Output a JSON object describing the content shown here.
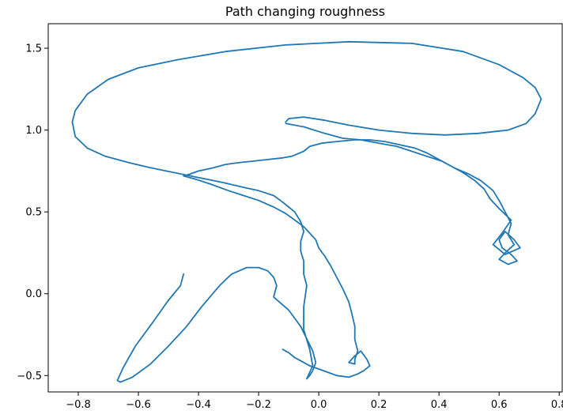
{
  "chart_data": {
    "type": "line",
    "title": "Path changing roughness",
    "xlabel": "",
    "ylabel": "",
    "xlim": [
      -0.9,
      0.81
    ],
    "ylim": [
      -0.6,
      1.65
    ],
    "xticks": [
      -0.8,
      -0.6,
      -0.4,
      -0.2,
      0.0,
      0.2,
      0.4,
      0.6,
      0.8
    ],
    "xtick_labels": [
      "−0.8",
      "−0.6",
      "−0.4",
      "−0.2",
      "0.0",
      "0.2",
      "0.4",
      "0.6",
      "0.8"
    ],
    "yticks": [
      -0.5,
      0.0,
      0.5,
      1.0,
      1.5
    ],
    "ytick_labels": [
      "−0.5",
      "0.0",
      "0.5",
      "1.0",
      "1.5"
    ],
    "grid": false,
    "line_color": "#1f77b4",
    "series": [
      {
        "x": [
          -0.45,
          -0.46,
          -0.5,
          -0.55,
          -0.61,
          -0.65,
          -0.67,
          -0.66,
          -0.62,
          -0.56,
          -0.5,
          -0.44,
          -0.39,
          -0.33,
          -0.29,
          -0.24,
          -0.2,
          -0.17,
          -0.15,
          -0.14,
          -0.15,
          -0.1,
          -0.06,
          -0.02,
          -0.01,
          -0.02,
          -0.03,
          -0.04,
          -0.03,
          -0.02,
          -0.03,
          -0.05,
          -0.05,
          -0.04,
          -0.05,
          -0.05,
          -0.06,
          -0.06,
          -0.05,
          -0.06,
          -0.07,
          -0.08,
          -0.1,
          -0.12,
          -0.15,
          -0.2,
          -0.25,
          -0.32,
          -0.4,
          -0.48,
          -0.56,
          -0.63,
          -0.71,
          -0.77,
          -0.81,
          -0.82,
          -0.81,
          -0.77,
          -0.7,
          -0.6,
          -0.47,
          -0.31,
          -0.11,
          0.1,
          0.31,
          0.48,
          0.6,
          0.68,
          0.72,
          0.74,
          0.72,
          0.69,
          0.63,
          0.53,
          0.42,
          0.31,
          0.2,
          0.1,
          0.02,
          -0.05,
          -0.1,
          -0.11
        ],
        "y": [
          0.12,
          0.05,
          -0.04,
          -0.17,
          -0.32,
          -0.45,
          -0.53,
          -0.54,
          -0.51,
          -0.43,
          -0.32,
          -0.2,
          -0.08,
          0.05,
          0.12,
          0.16,
          0.16,
          0.14,
          0.1,
          0.05,
          -0.02,
          -0.1,
          -0.2,
          -0.35,
          -0.42,
          -0.47,
          -0.5,
          -0.52,
          -0.48,
          -0.44,
          -0.34,
          -0.22,
          -0.08,
          0.05,
          0.12,
          0.2,
          0.26,
          0.32,
          0.38,
          0.44,
          0.47,
          0.5,
          0.53,
          0.56,
          0.6,
          0.63,
          0.65,
          0.68,
          0.71,
          0.74,
          0.77,
          0.8,
          0.84,
          0.89,
          0.96,
          1.05,
          1.12,
          1.22,
          1.31,
          1.38,
          1.43,
          1.48,
          1.52,
          1.54,
          1.53,
          1.48,
          1.4,
          1.32,
          1.26,
          1.19,
          1.1,
          1.04,
          1.0,
          0.98,
          0.97,
          0.98,
          1.0,
          1.03,
          1.06,
          1.08,
          1.07,
          1.05
        ]
      },
      {
        "x": [
          -0.11,
          -0.05,
          0.02,
          0.08,
          0.14,
          0.2,
          0.26,
          0.31,
          0.36,
          0.41,
          0.45,
          0.5,
          0.54,
          0.58,
          0.6,
          0.62,
          0.64,
          0.63,
          0.65,
          0.62,
          0.6,
          0.63,
          0.66,
          0.64,
          0.61,
          0.6,
          0.62,
          0.65,
          0.67,
          0.62,
          0.58,
          0.61,
          0.64,
          0.6,
          0.57,
          0.55,
          0.52,
          0.48,
          0.44,
          0.4,
          0.36,
          0.32,
          0.27,
          0.22,
          0.17,
          0.12,
          0.06,
          0.01,
          -0.03,
          -0.05,
          -0.09,
          -0.12,
          -0.17,
          -0.22,
          -0.27,
          -0.31,
          -0.35,
          -0.4,
          -0.43,
          -0.45,
          -0.41,
          -0.36,
          -0.3,
          -0.25,
          -0.2,
          -0.15,
          -0.11,
          -0.08,
          -0.05,
          -0.03,
          -0.01,
          0.0,
          0.02,
          0.04,
          0.06,
          0.08,
          0.1,
          0.11,
          0.12,
          0.12,
          0.13,
          0.12,
          0.12,
          0.1,
          0.12,
          0.14,
          0.16,
          0.17,
          0.15,
          0.13,
          0.1,
          0.06,
          0.03,
          0.0,
          -0.03,
          -0.05,
          -0.08,
          -0.1,
          -0.12
        ],
        "y": [
          1.04,
          1.02,
          0.98,
          0.95,
          0.94,
          0.92,
          0.9,
          0.87,
          0.84,
          0.81,
          0.77,
          0.73,
          0.69,
          0.63,
          0.57,
          0.5,
          0.43,
          0.36,
          0.3,
          0.25,
          0.21,
          0.18,
          0.2,
          0.24,
          0.28,
          0.33,
          0.38,
          0.33,
          0.28,
          0.24,
          0.3,
          0.37,
          0.45,
          0.52,
          0.58,
          0.64,
          0.69,
          0.74,
          0.78,
          0.82,
          0.86,
          0.89,
          0.91,
          0.93,
          0.94,
          0.94,
          0.93,
          0.92,
          0.9,
          0.87,
          0.84,
          0.83,
          0.82,
          0.81,
          0.8,
          0.79,
          0.77,
          0.75,
          0.73,
          0.72,
          0.7,
          0.67,
          0.63,
          0.6,
          0.57,
          0.53,
          0.49,
          0.45,
          0.41,
          0.37,
          0.33,
          0.28,
          0.23,
          0.17,
          0.1,
          0.03,
          -0.05,
          -0.12,
          -0.2,
          -0.28,
          -0.35,
          -0.4,
          -0.43,
          -0.42,
          -0.38,
          -0.35,
          -0.4,
          -0.44,
          -0.47,
          -0.49,
          -0.51,
          -0.5,
          -0.48,
          -0.46,
          -0.44,
          -0.42,
          -0.39,
          -0.36,
          -0.34
        ]
      }
    ]
  }
}
